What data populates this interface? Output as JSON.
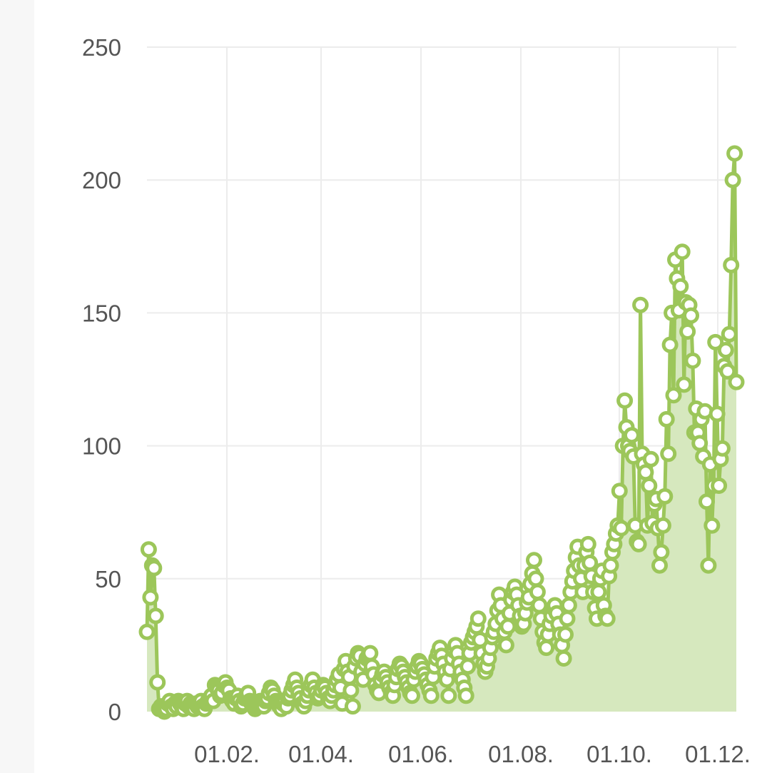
{
  "chart_data": {
    "type": "area",
    "title": "",
    "xlabel": "",
    "ylabel": "",
    "ylim": [
      0,
      250
    ],
    "y_ticks": [
      "0",
      "50",
      "100",
      "150",
      "200",
      "250"
    ],
    "x_ticks": [
      "01.02.",
      "01.04.",
      "01.06.",
      "01.08.",
      "01.10.",
      "01.12."
    ],
    "grid": true,
    "legend": "none",
    "color": "#9cc65a",
    "fill_color": "#d6e8be",
    "series": [
      {
        "values": [
          30,
          61,
          43,
          55,
          54,
          36,
          11,
          1,
          2,
          1,
          0,
          1,
          3,
          4,
          2,
          1,
          3,
          2,
          4,
          3,
          2,
          1,
          3,
          4,
          2,
          3,
          2,
          1,
          3,
          2,
          3,
          4,
          2,
          1,
          3,
          4,
          5,
          6,
          4,
          10,
          9,
          8,
          6,
          7,
          10,
          11,
          9,
          8,
          5,
          4,
          3,
          5,
          6,
          4,
          2,
          3,
          5,
          6,
          7,
          4,
          3,
          2,
          1,
          2,
          3,
          4,
          3,
          2,
          4,
          5,
          7,
          9,
          8,
          6,
          4,
          3,
          2,
          1,
          3,
          4,
          2,
          5,
          6,
          8,
          10,
          12,
          9,
          7,
          5,
          3,
          2,
          4,
          6,
          8,
          10,
          12,
          9,
          7,
          5,
          6,
          8,
          10,
          9,
          7,
          5,
          4,
          6,
          8,
          10,
          12,
          14,
          9,
          3,
          16,
          19,
          15,
          13,
          8,
          2,
          17,
          20,
          22,
          21,
          15,
          12,
          18,
          20,
          21,
          22,
          17,
          14,
          10,
          8,
          7,
          12,
          14,
          15,
          13,
          11,
          9,
          7,
          6,
          10,
          13,
          16,
          18,
          17,
          15,
          13,
          11,
          9,
          7,
          6,
          12,
          15,
          17,
          19,
          18,
          16,
          14,
          12,
          10,
          8,
          6,
          13,
          17,
          20,
          22,
          24,
          21,
          18,
          15,
          12,
          6,
          16,
          20,
          23,
          25,
          22,
          18,
          15,
          12,
          9,
          6,
          17,
          22,
          26,
          28,
          30,
          32,
          35,
          27,
          22,
          18,
          15,
          17,
          20,
          24,
          28,
          30,
          33,
          38,
          44,
          40,
          35,
          30,
          25,
          32,
          37,
          42,
          45,
          47,
          44,
          40,
          36,
          32,
          33,
          37,
          41,
          43,
          48,
          52,
          57,
          50,
          45,
          40,
          35,
          30,
          26,
          24,
          29,
          33,
          36,
          39,
          40,
          37,
          33,
          29,
          25,
          20,
          29,
          35,
          40,
          45,
          49,
          53,
          58,
          62,
          55,
          50,
          45,
          55,
          60,
          63,
          56,
          51,
          45,
          39,
          35,
          45,
          50,
          53,
          40,
          36,
          35,
          51,
          55,
          60,
          63,
          67,
          70,
          83,
          69,
          100,
          117,
          107,
          100,
          98,
          104,
          96,
          70,
          64,
          63,
          153,
          97,
          93,
          90,
          70,
          85,
          95,
          71,
          78,
          80,
          69,
          55,
          60,
          70,
          81,
          110,
          97,
          138,
          150,
          119,
          170,
          163,
          151,
          160,
          173,
          123,
          154,
          143,
          153,
          149,
          132,
          105,
          114,
          105,
          101,
          110,
          96,
          113,
          79,
          55,
          93,
          70,
          85,
          139,
          112,
          85,
          95,
          99,
          130,
          136,
          128,
          142,
          168,
          200,
          210,
          124
        ]
      }
    ]
  }
}
